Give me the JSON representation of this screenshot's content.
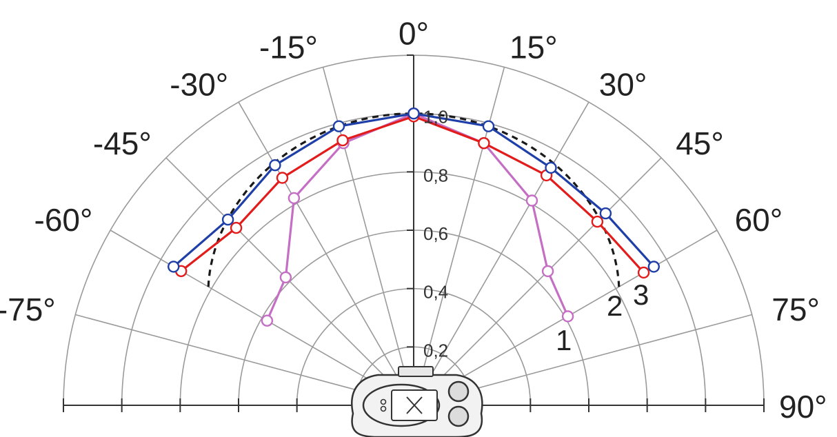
{
  "chart_data": {
    "type": "polar-line",
    "angle_unit": "degrees",
    "angle_range": [
      -90,
      90
    ],
    "r_range": [
      0,
      1.2
    ],
    "angle_ticks": [
      -75,
      -60,
      -45,
      -30,
      -15,
      0,
      15,
      30,
      45,
      60,
      75,
      90
    ],
    "angle_tick_labels": [
      "-75°",
      "-60°",
      "-45°",
      "-30°",
      "-15°",
      "0°",
      "15°",
      "30°",
      "45°",
      "60°",
      "75°",
      "90°"
    ],
    "r_ticks": [
      0.2,
      0.4,
      0.6,
      0.8,
      1.0
    ],
    "r_tick_labels": [
      "0,2",
      "0,4",
      "0,6",
      "0,8",
      "1,0"
    ],
    "series": [
      {
        "name": "1",
        "color": "#c46ec4",
        "angles": [
          -60,
          -45,
          -30,
          -15,
          0,
          15,
          30,
          45,
          60
        ],
        "r": [
          0.58,
          0.62,
          0.82,
          0.93,
          1.0,
          0.93,
          0.81,
          0.65,
          0.61
        ]
      },
      {
        "name": "2",
        "color": "#e21b1b",
        "angles": [
          -60,
          -45,
          -30,
          -15,
          0,
          15,
          30,
          45,
          60
        ],
        "r": [
          0.92,
          0.86,
          0.9,
          0.94,
          0.99,
          0.93,
          0.91,
          0.89,
          0.91
        ]
      },
      {
        "name": "3",
        "color": "#1f3fa8",
        "angles": [
          -60,
          -45,
          -30,
          -15,
          0,
          15,
          30,
          45,
          60
        ],
        "r": [
          0.95,
          0.9,
          0.95,
          0.99,
          1.0,
          0.99,
          0.94,
          0.93,
          0.95
        ]
      }
    ],
    "reference_curve": {
      "color": "#1a1a1a",
      "style": "dashed",
      "function": "cosine",
      "angle_range": [
        -60,
        60
      ],
      "r_at_0": 1.0
    }
  }
}
